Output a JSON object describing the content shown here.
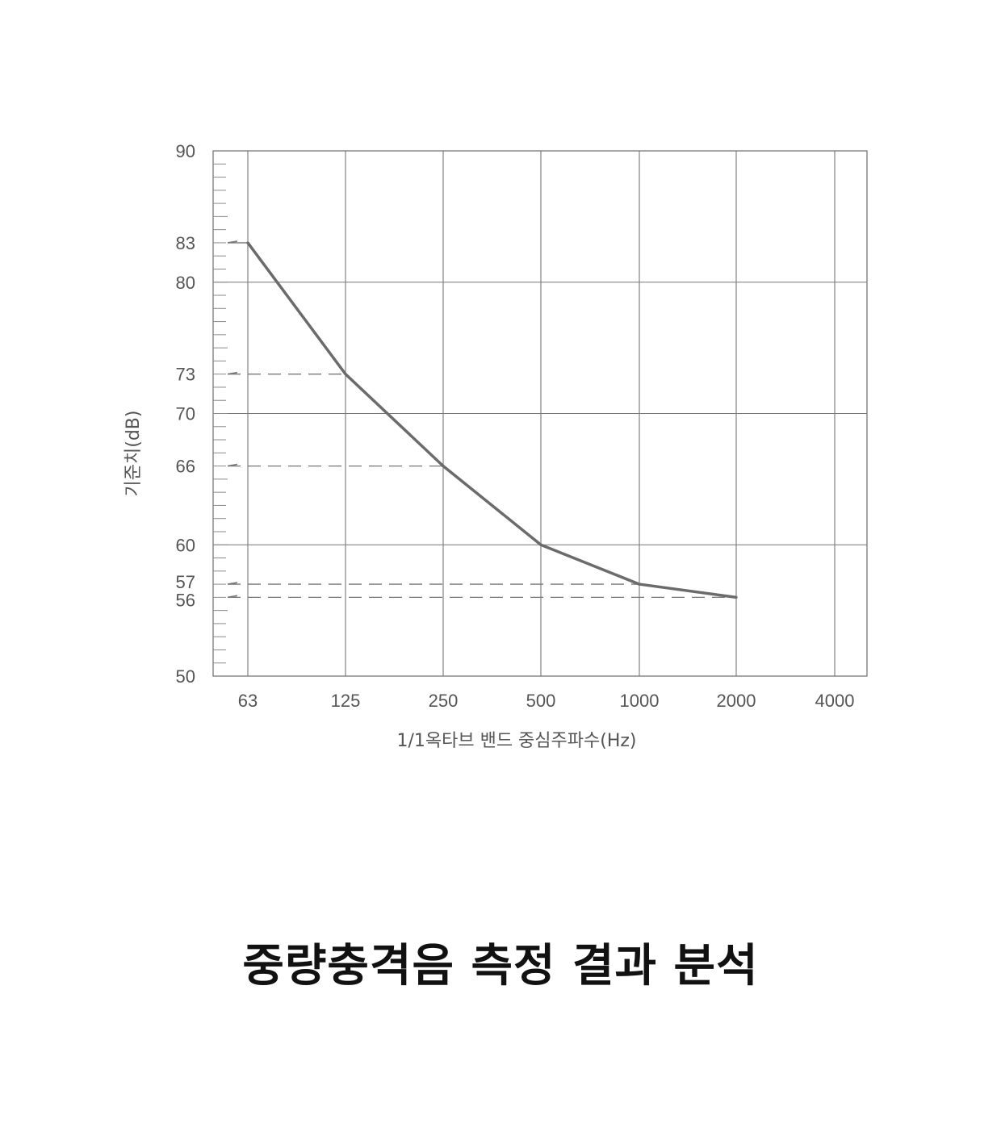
{
  "chart_data": {
    "type": "line",
    "title": "",
    "xlabel": "1/1옥타브 밴드 중심주파수(Hz)",
    "ylabel": "기준치(dB)",
    "x_categories": [
      "63",
      "125",
      "250",
      "500",
      "1000",
      "2000",
      "4000"
    ],
    "ylim": [
      50,
      90
    ],
    "y_ticks": [
      90,
      83,
      80,
      73,
      70,
      66,
      60,
      57,
      56,
      50
    ],
    "y_gridlines": [
      60,
      70,
      80
    ],
    "x_gridlines": true,
    "series": [
      {
        "x": [
          "63",
          "125",
          "250",
          "500",
          "1000",
          "2000"
        ],
        "values": [
          83,
          73,
          66,
          60,
          57,
          56
        ]
      }
    ],
    "reference_dashes": [
      {
        "y": 73,
        "to_x": "125"
      },
      {
        "y": 66,
        "to_x": "250"
      },
      {
        "y": 57,
        "to_x": "1000"
      },
      {
        "y": 56,
        "to_x": "2000"
      }
    ],
    "line_color": "#6b6b6b",
    "grid_color": "#777777"
  },
  "caption": "중량충격음 측정 결과 분석"
}
